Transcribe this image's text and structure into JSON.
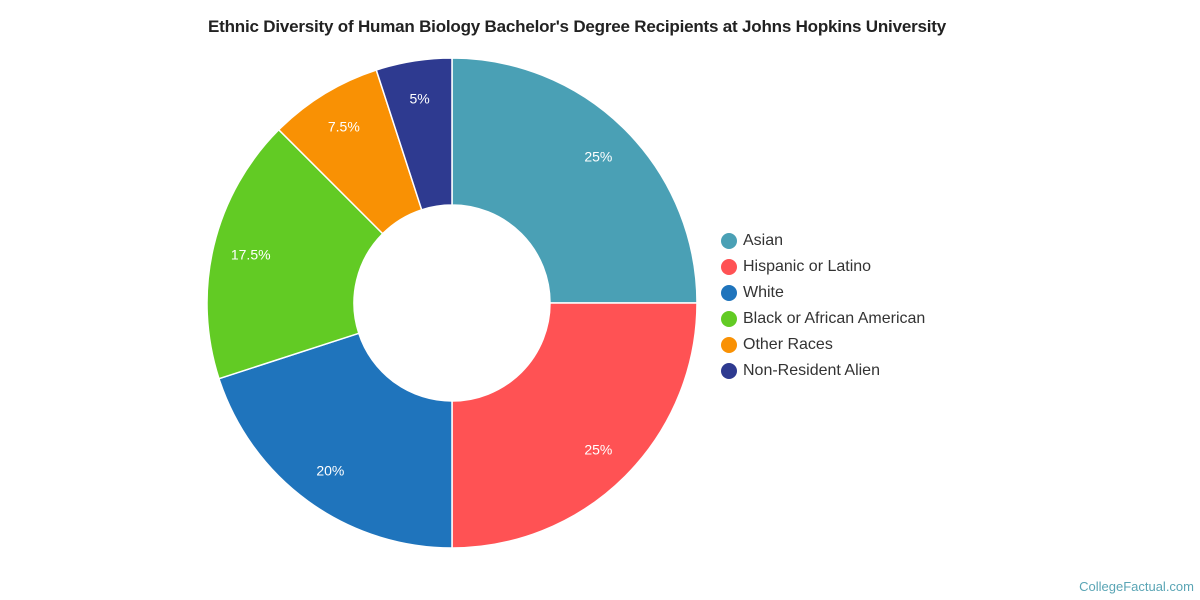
{
  "chart_data": {
    "type": "pie",
    "subtype": "donut",
    "title": "Ethnic Diversity of Human Biology Bachelor's Degree Recipients at Johns Hopkins University",
    "categories": [
      "Asian",
      "Hispanic or Latino",
      "White",
      "Black or African American",
      "Other Races",
      "Non-Resident Alien"
    ],
    "values": [
      25,
      25,
      20,
      17.5,
      7.5,
      5
    ],
    "labels": [
      "25%",
      "25%",
      "20%",
      "17.5%",
      "7.5%",
      "5%"
    ],
    "colors": [
      "#4aa0b5",
      "#ff5254",
      "#1f74bc",
      "#62cb24",
      "#f99104",
      "#2e3a90"
    ],
    "unit": "%",
    "legend_position": "right",
    "start_angle": 0,
    "direction": "clockwise"
  },
  "legend": {
    "items": [
      {
        "label": "Asian",
        "color": "#4aa0b5"
      },
      {
        "label": "Hispanic or Latino",
        "color": "#ff5254"
      },
      {
        "label": "White",
        "color": "#1f74bc"
      },
      {
        "label": "Black or African American",
        "color": "#62cb24"
      },
      {
        "label": "Other Races",
        "color": "#f99104"
      },
      {
        "label": "Non-Resident Alien",
        "color": "#2e3a90"
      }
    ]
  },
  "credit": "CollegeFactual.com"
}
